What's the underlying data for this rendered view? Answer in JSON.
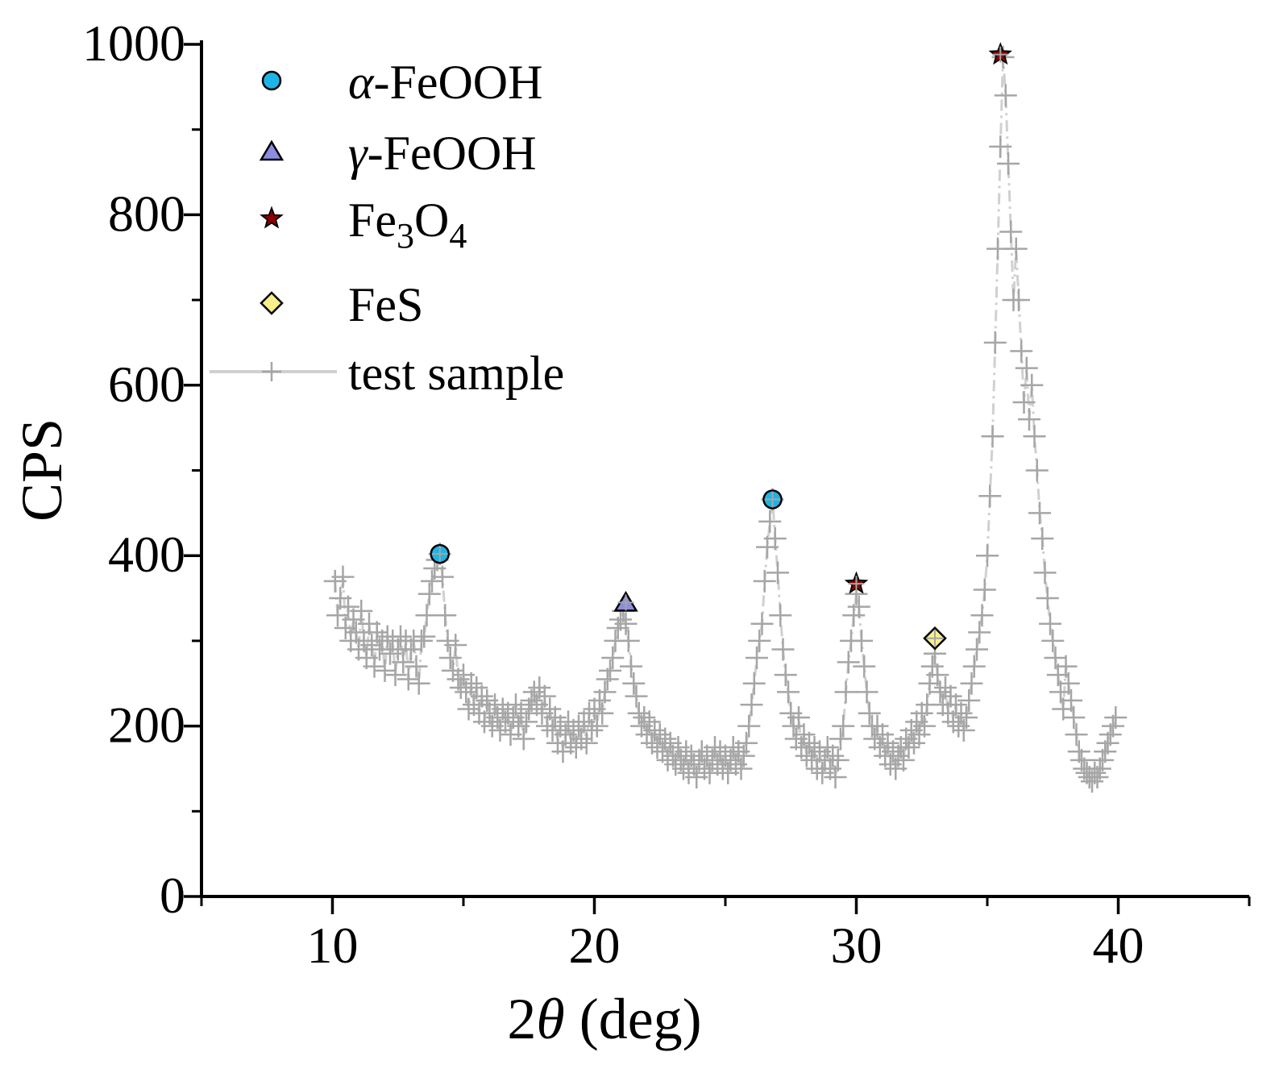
{
  "chart_data": {
    "type": "scatter",
    "xlabel": "2θ (deg)",
    "ylabel": "CPS",
    "xlim": [
      5,
      45
    ],
    "ylim": [
      0,
      1000
    ],
    "x_ticks": [
      10,
      20,
      30,
      40
    ],
    "y_ticks": [
      0,
      200,
      400,
      600,
      800,
      1000
    ],
    "grid": false,
    "legend_position": "top-left",
    "colors": {
      "alpha_feooh": "#1eb4e6",
      "gamma_feooh": "#8c8ce0",
      "fe3o4": "#8b0000",
      "fes": "#f5f08c",
      "sample": "#a6a6a6",
      "sample_line": "#d0d0d0"
    },
    "legend": [
      {
        "key": "alpha",
        "greek": "α",
        "rest": "-FeOOH",
        "marker": "circle"
      },
      {
        "key": "gamma",
        "greek": "γ",
        "rest": "-FeOOH",
        "marker": "triangle"
      },
      {
        "key": "fe3o4",
        "base": "Fe",
        "sub1": "3",
        "mid": "O",
        "sub2": "4",
        "marker": "star"
      },
      {
        "key": "fes",
        "text": "FeS",
        "marker": "diamond"
      },
      {
        "key": "sample",
        "text": "test sample",
        "marker": "cross-line"
      }
    ],
    "peaks": [
      {
        "phase": "α-FeOOH",
        "marker": "circle",
        "x": 14.1,
        "y": 402
      },
      {
        "phase": "γ-FeOOH",
        "marker": "triangle",
        "x": 21.2,
        "y": 345
      },
      {
        "phase": "α-FeOOH",
        "marker": "circle",
        "x": 26.8,
        "y": 466
      },
      {
        "phase": "Fe3O4",
        "marker": "star",
        "x": 30.0,
        "y": 367
      },
      {
        "phase": "FeS",
        "marker": "diamond",
        "x": 33.0,
        "y": 303
      },
      {
        "phase": "Fe3O4",
        "marker": "star",
        "x": 35.5,
        "y": 988
      }
    ],
    "series": [
      {
        "name": "test sample",
        "points": [
          [
            10.1,
            370
          ],
          [
            10.2,
            330
          ],
          [
            10.3,
            350
          ],
          [
            10.4,
            375
          ],
          [
            10.5,
            315
          ],
          [
            10.6,
            340
          ],
          [
            10.7,
            300
          ],
          [
            10.8,
            325
          ],
          [
            10.9,
            310
          ],
          [
            11.0,
            290
          ],
          [
            11.1,
            335
          ],
          [
            11.2,
            300
          ],
          [
            11.3,
            280
          ],
          [
            11.4,
            320
          ],
          [
            11.5,
            295
          ],
          [
            11.6,
            270
          ],
          [
            11.7,
            310
          ],
          [
            11.8,
            290
          ],
          [
            11.9,
            300
          ],
          [
            12.0,
            265
          ],
          [
            12.1,
            305
          ],
          [
            12.2,
            285
          ],
          [
            12.3,
            300
          ],
          [
            12.4,
            260
          ],
          [
            12.5,
            290
          ],
          [
            12.6,
            305
          ],
          [
            12.7,
            275
          ],
          [
            12.8,
            300
          ],
          [
            12.9,
            255
          ],
          [
            13.0,
            290
          ],
          [
            13.1,
            300
          ],
          [
            13.2,
            270
          ],
          [
            13.3,
            250
          ],
          [
            13.4,
            300
          ],
          [
            13.5,
            305
          ],
          [
            13.6,
            330
          ],
          [
            13.7,
            355
          ],
          [
            13.8,
            370
          ],
          [
            13.9,
            385
          ],
          [
            14.0,
            395
          ],
          [
            14.1,
            402
          ],
          [
            14.2,
            375
          ],
          [
            14.3,
            330
          ],
          [
            14.4,
            300
          ],
          [
            14.5,
            280
          ],
          [
            14.6,
            265
          ],
          [
            14.7,
            295
          ],
          [
            14.8,
            255
          ],
          [
            14.9,
            245
          ],
          [
            15.0,
            260
          ],
          [
            15.1,
            240
          ],
          [
            15.2,
            220
          ],
          [
            15.3,
            250
          ],
          [
            15.4,
            225
          ],
          [
            15.5,
            245
          ],
          [
            15.6,
            215
          ],
          [
            15.7,
            235
          ],
          [
            15.8,
            205
          ],
          [
            15.9,
            230
          ],
          [
            16.0,
            215
          ],
          [
            16.1,
            200
          ],
          [
            16.2,
            225
          ],
          [
            16.3,
            210
          ],
          [
            16.4,
            195
          ],
          [
            16.5,
            220
          ],
          [
            16.6,
            205
          ],
          [
            16.7,
            215
          ],
          [
            16.8,
            190
          ],
          [
            16.9,
            210
          ],
          [
            17.0,
            225
          ],
          [
            17.1,
            200
          ],
          [
            17.2,
            215
          ],
          [
            17.3,
            185
          ],
          [
            17.4,
            205
          ],
          [
            17.5,
            220
          ],
          [
            17.6,
            230
          ],
          [
            17.7,
            240
          ],
          [
            17.8,
            225
          ],
          [
            17.9,
            245
          ],
          [
            18.0,
            215
          ],
          [
            18.1,
            235
          ],
          [
            18.2,
            200
          ],
          [
            18.3,
            220
          ],
          [
            18.4,
            195
          ],
          [
            18.5,
            210
          ],
          [
            18.6,
            180
          ],
          [
            18.7,
            200
          ],
          [
            18.8,
            170
          ],
          [
            18.9,
            190
          ],
          [
            19.0,
            205
          ],
          [
            19.1,
            180
          ],
          [
            19.2,
            195
          ],
          [
            19.3,
            175
          ],
          [
            19.4,
            200
          ],
          [
            19.5,
            185
          ],
          [
            19.6,
            205
          ],
          [
            19.7,
            180
          ],
          [
            19.8,
            215
          ],
          [
            19.9,
            195
          ],
          [
            20.0,
            220
          ],
          [
            20.1,
            200
          ],
          [
            20.2,
            230
          ],
          [
            20.3,
            215
          ],
          [
            20.4,
            240
          ],
          [
            20.5,
            255
          ],
          [
            20.6,
            265
          ],
          [
            20.7,
            280
          ],
          [
            20.8,
            300
          ],
          [
            20.9,
            315
          ],
          [
            21.0,
            325
          ],
          [
            21.1,
            335
          ],
          [
            21.2,
            320
          ],
          [
            21.3,
            300
          ],
          [
            21.4,
            270
          ],
          [
            21.5,
            250
          ],
          [
            21.6,
            235
          ],
          [
            21.7,
            215
          ],
          [
            21.8,
            200
          ],
          [
            21.9,
            210
          ],
          [
            22.0,
            190
          ],
          [
            22.1,
            205
          ],
          [
            22.2,
            180
          ],
          [
            22.3,
            195
          ],
          [
            22.4,
            175
          ],
          [
            22.5,
            190
          ],
          [
            22.6,
            170
          ],
          [
            22.7,
            185
          ],
          [
            22.8,
            160
          ],
          [
            22.9,
            180
          ],
          [
            23.0,
            165
          ],
          [
            23.1,
            155
          ],
          [
            23.2,
            175
          ],
          [
            23.3,
            160
          ],
          [
            23.4,
            150
          ],
          [
            23.5,
            170
          ],
          [
            23.6,
            145
          ],
          [
            23.7,
            165
          ],
          [
            23.8,
            155
          ],
          [
            23.9,
            140
          ],
          [
            24.0,
            160
          ],
          [
            24.1,
            170
          ],
          [
            24.2,
            150
          ],
          [
            24.3,
            165
          ],
          [
            24.4,
            145
          ],
          [
            24.5,
            160
          ],
          [
            24.6,
            175
          ],
          [
            24.7,
            155
          ],
          [
            24.8,
            170
          ],
          [
            24.9,
            150
          ],
          [
            25.0,
            165
          ],
          [
            25.1,
            145
          ],
          [
            25.2,
            160
          ],
          [
            25.3,
            175
          ],
          [
            25.4,
            155
          ],
          [
            25.5,
            170
          ],
          [
            25.6,
            150
          ],
          [
            25.7,
            165
          ],
          [
            25.8,
            180
          ],
          [
            25.9,
            200
          ],
          [
            26.0,
            225
          ],
          [
            26.1,
            250
          ],
          [
            26.2,
            280
          ],
          [
            26.3,
            300
          ],
          [
            26.4,
            320
          ],
          [
            26.5,
            370
          ],
          [
            26.6,
            410
          ],
          [
            26.7,
            440
          ],
          [
            26.8,
            466
          ],
          [
            26.9,
            420
          ],
          [
            27.0,
            380
          ],
          [
            27.1,
            330
          ],
          [
            27.2,
            290
          ],
          [
            27.3,
            260
          ],
          [
            27.4,
            240
          ],
          [
            27.5,
            215
          ],
          [
            27.6,
            200
          ],
          [
            27.7,
            185
          ],
          [
            27.8,
            210
          ],
          [
            27.9,
            175
          ],
          [
            28.0,
            190
          ],
          [
            28.1,
            165
          ],
          [
            28.2,
            180
          ],
          [
            28.3,
            160
          ],
          [
            28.4,
            175
          ],
          [
            28.5,
            150
          ],
          [
            28.6,
            170
          ],
          [
            28.7,
            145
          ],
          [
            28.8,
            160
          ],
          [
            28.9,
            175
          ],
          [
            29.0,
            150
          ],
          [
            29.1,
            165
          ],
          [
            29.2,
            140
          ],
          [
            29.3,
            160
          ],
          [
            29.4,
            185
          ],
          [
            29.5,
            200
          ],
          [
            29.6,
            240
          ],
          [
            29.7,
            275
          ],
          [
            29.8,
            300
          ],
          [
            29.9,
            330
          ],
          [
            30.0,
            355
          ],
          [
            30.1,
            340
          ],
          [
            30.2,
            300
          ],
          [
            30.3,
            270
          ],
          [
            30.4,
            240
          ],
          [
            30.5,
            215
          ],
          [
            30.6,
            200
          ],
          [
            30.7,
            185
          ],
          [
            30.8,
            200
          ],
          [
            30.9,
            175
          ],
          [
            31.0,
            190
          ],
          [
            31.1,
            165
          ],
          [
            31.2,
            180
          ],
          [
            31.3,
            155
          ],
          [
            31.4,
            170
          ],
          [
            31.5,
            150
          ],
          [
            31.6,
            165
          ],
          [
            31.7,
            175
          ],
          [
            31.8,
            160
          ],
          [
            31.9,
            185
          ],
          [
            32.0,
            175
          ],
          [
            32.1,
            195
          ],
          [
            32.2,
            180
          ],
          [
            32.3,
            205
          ],
          [
            32.4,
            190
          ],
          [
            32.5,
            215
          ],
          [
            32.6,
            200
          ],
          [
            32.7,
            225
          ],
          [
            32.8,
            250
          ],
          [
            32.9,
            270
          ],
          [
            33.0,
            285
          ],
          [
            33.1,
            260
          ],
          [
            33.2,
            240
          ],
          [
            33.3,
            225
          ],
          [
            33.4,
            245
          ],
          [
            33.5,
            215
          ],
          [
            33.6,
            235
          ],
          [
            33.7,
            205
          ],
          [
            33.8,
            225
          ],
          [
            33.9,
            200
          ],
          [
            34.0,
            215
          ],
          [
            34.1,
            195
          ],
          [
            34.2,
            210
          ],
          [
            34.3,
            230
          ],
          [
            34.4,
            250
          ],
          [
            34.5,
            270
          ],
          [
            34.6,
            290
          ],
          [
            34.7,
            310
          ],
          [
            34.8,
            330
          ],
          [
            34.9,
            360
          ],
          [
            35.0,
            400
          ],
          [
            35.1,
            470
          ],
          [
            35.2,
            540
          ],
          [
            35.3,
            650
          ],
          [
            35.4,
            760
          ],
          [
            35.5,
            880
          ],
          [
            35.6,
            985
          ],
          [
            35.7,
            940
          ],
          [
            35.8,
            860
          ],
          [
            35.9,
            780
          ],
          [
            36.0,
            700
          ],
          [
            36.1,
            760
          ],
          [
            36.2,
            700
          ],
          [
            36.3,
            640
          ],
          [
            36.4,
            580
          ],
          [
            36.5,
            620
          ],
          [
            36.6,
            560
          ],
          [
            36.7,
            600
          ],
          [
            36.8,
            540
          ],
          [
            36.9,
            500
          ],
          [
            37.0,
            450
          ],
          [
            37.1,
            420
          ],
          [
            37.2,
            380
          ],
          [
            37.3,
            350
          ],
          [
            37.4,
            320
          ],
          [
            37.5,
            300
          ],
          [
            37.6,
            280
          ],
          [
            37.7,
            260
          ],
          [
            37.8,
            240
          ],
          [
            37.9,
            220
          ],
          [
            38.0,
            270
          ],
          [
            38.1,
            250
          ],
          [
            38.2,
            230
          ],
          [
            38.3,
            210
          ],
          [
            38.4,
            190
          ],
          [
            38.5,
            170
          ],
          [
            38.6,
            160
          ],
          [
            38.7,
            150
          ],
          [
            38.8,
            145
          ],
          [
            38.9,
            140
          ],
          [
            39.0,
            135
          ],
          [
            39.1,
            145
          ],
          [
            39.2,
            140
          ],
          [
            39.3,
            150
          ],
          [
            39.4,
            160
          ],
          [
            39.5,
            170
          ],
          [
            39.6,
            180
          ],
          [
            39.7,
            190
          ],
          [
            39.8,
            200
          ],
          [
            39.9,
            210
          ]
        ]
      }
    ]
  }
}
